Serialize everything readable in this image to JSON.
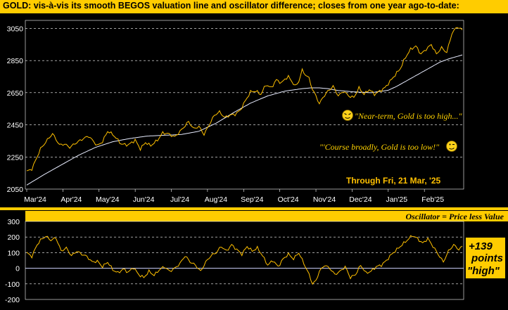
{
  "chart_data": [
    {
      "type": "line",
      "title": "GOLD:  vis-à-vis its smooth BEGOS valuation line and oscillator difference; closes from one year ago-to-date:",
      "ylim": [
        2050,
        3100
      ],
      "yticks": [
        2050,
        2250,
        2450,
        2650,
        2850,
        3050
      ],
      "x_tick_labels": [
        "Mar'24",
        "Apr'24",
        "May'24",
        "Jun'24",
        "Jul'24",
        "Aug'24",
        "Sep'24",
        "Oct'24",
        "Nov'24",
        "Dec'24",
        "Jan'25",
        "Feb'25"
      ],
      "x_tick_positions": [
        0,
        21,
        42,
        63,
        84,
        105,
        126,
        147,
        168,
        189,
        210,
        231
      ],
      "n_points": 254,
      "grid": "horizontal dashed",
      "series": [
        {
          "name": "Gold price",
          "color": "#ffc000",
          "anchors": [
            [
              0,
              2160
            ],
            [
              3,
              2175
            ],
            [
              8,
              2300
            ],
            [
              13,
              2370
            ],
            [
              15,
              2395
            ],
            [
              17,
              2360
            ],
            [
              19,
              2325
            ],
            [
              22,
              2330
            ],
            [
              25,
              2310
            ],
            [
              29,
              2340
            ],
            [
              33,
              2365
            ],
            [
              36,
              2380
            ],
            [
              41,
              2320
            ],
            [
              44,
              2345
            ],
            [
              47,
              2410
            ],
            [
              50,
              2390
            ],
            [
              55,
              2330
            ],
            [
              59,
              2325
            ],
            [
              63,
              2355
            ],
            [
              66,
              2300
            ],
            [
              69,
              2340
            ],
            [
              72,
              2320
            ],
            [
              76,
              2355
            ],
            [
              79,
              2400
            ],
            [
              82,
              2395
            ],
            [
              86,
              2375
            ],
            [
              90,
              2420
            ],
            [
              94,
              2470
            ],
            [
              97,
              2425
            ],
            [
              100,
              2440
            ],
            [
              103,
              2390
            ],
            [
              106,
              2450
            ],
            [
              109,
              2510
            ],
            [
              112,
              2530
            ],
            [
              115,
              2495
            ],
            [
              118,
              2510
            ],
            [
              121,
              2515
            ],
            [
              124,
              2540
            ],
            [
              127,
              2600
            ],
            [
              130,
              2655
            ],
            [
              133,
              2660
            ],
            [
              136,
              2640
            ],
            [
              139,
              2700
            ],
            [
              142,
              2680
            ],
            [
              145,
              2730
            ],
            [
              148,
              2710
            ],
            [
              150,
              2735
            ],
            [
              152,
              2750
            ],
            [
              154,
              2720
            ],
            [
              156,
              2690
            ],
            [
              158,
              2720
            ],
            [
              160,
              2790
            ],
            [
              162,
              2760
            ],
            [
              164,
              2740
            ],
            [
              166,
              2670
            ],
            [
              168,
              2630
            ],
            [
              170,
              2580
            ],
            [
              172,
              2620
            ],
            [
              175,
              2660
            ],
            [
              178,
              2690
            ],
            [
              181,
              2630
            ],
            [
              184,
              2660
            ],
            [
              187,
              2630
            ],
            [
              190,
              2620
            ],
            [
              193,
              2680
            ],
            [
              196,
              2640
            ],
            [
              199,
              2670
            ],
            [
              202,
              2640
            ],
            [
              205,
              2660
            ],
            [
              208,
              2680
            ],
            [
              211,
              2720
            ],
            [
              214,
              2760
            ],
            [
              217,
              2800
            ],
            [
              220,
              2870
            ],
            [
              223,
              2920
            ],
            [
              226,
              2940
            ],
            [
              229,
              2890
            ],
            [
              232,
              2920
            ],
            [
              235,
              2950
            ],
            [
              238,
              2890
            ],
            [
              241,
              2930
            ],
            [
              244,
              2900
            ],
            [
              247,
              3020
            ],
            [
              250,
              3060
            ],
            [
              253,
              3040
            ]
          ]
        },
        {
          "name": "BEGOS valuation line",
          "color": "#ffffff",
          "anchors": [
            [
              0,
              2075
            ],
            [
              10,
              2140
            ],
            [
              20,
              2200
            ],
            [
              30,
              2260
            ],
            [
              40,
              2310
            ],
            [
              50,
              2345
            ],
            [
              60,
              2365
            ],
            [
              70,
              2380
            ],
            [
              80,
              2385
            ],
            [
              90,
              2390
            ],
            [
              100,
              2410
            ],
            [
              110,
              2460
            ],
            [
              120,
              2525
            ],
            [
              130,
              2585
            ],
            [
              140,
              2630
            ],
            [
              150,
              2660
            ],
            [
              160,
              2675
            ],
            [
              165,
              2680
            ],
            [
              170,
              2680
            ],
            [
              175,
              2675
            ],
            [
              180,
              2665
            ],
            [
              190,
              2655
            ],
            [
              200,
              2650
            ],
            [
              210,
              2665
            ],
            [
              215,
              2690
            ],
            [
              220,
              2720
            ],
            [
              225,
              2750
            ],
            [
              230,
              2780
            ],
            [
              235,
              2810
            ],
            [
              240,
              2840
            ],
            [
              245,
              2860
            ],
            [
              253,
              2885
            ]
          ]
        }
      ],
      "annotations": [
        {
          "text": "+139",
          "color": "#000000"
        },
        {
          "text": "points",
          "color": "#000000"
        },
        {
          "text": "\"high\"",
          "color": "#000000"
        },
        {
          "text": "\"Near-term, Gold is too high...\"",
          "color": "#ffd200"
        },
        {
          "text": "\"'Course broadly, Gold is too low!\"",
          "color": "#ffd200"
        },
        {
          "text": "Through Fri, 21 Mar, '25",
          "color": "#ffc000"
        }
      ]
    },
    {
      "type": "line",
      "title": "Oscillator = Price less Value",
      "ylim": [
        -200,
        300
      ],
      "yticks": [
        -200,
        -100,
        0,
        100,
        200,
        300
      ],
      "zero_line": true,
      "series": [
        {
          "name": "Oscillator",
          "color": "#ffc000",
          "anchors": [
            [
              0,
              100
            ],
            [
              3,
              75
            ],
            [
              6,
              150
            ],
            [
              8,
              180
            ],
            [
              11,
              205
            ],
            [
              14,
              180
            ],
            [
              17,
              195
            ],
            [
              20,
              110
            ],
            [
              23,
              130
            ],
            [
              26,
              80
            ],
            [
              29,
              110
            ],
            [
              32,
              90
            ],
            [
              35,
              75
            ],
            [
              38,
              40
            ],
            [
              41,
              45
            ],
            [
              44,
              10
            ],
            [
              47,
              40
            ],
            [
              50,
              -10
            ],
            [
              53,
              -30
            ],
            [
              56,
              -5
            ],
            [
              59,
              -25
            ],
            [
              62,
              5
            ],
            [
              65,
              -40
            ],
            [
              68,
              -60
            ],
            [
              71,
              -20
            ],
            [
              74,
              -45
            ],
            [
              77,
              -10
            ],
            [
              80,
              10
            ],
            [
              83,
              -20
            ],
            [
              86,
              0
            ],
            [
              89,
              30
            ],
            [
              92,
              80
            ],
            [
              95,
              40
            ],
            [
              98,
              20
            ],
            [
              101,
              -20
            ],
            [
              104,
              40
            ],
            [
              107,
              80
            ],
            [
              110,
              100
            ],
            [
              113,
              140
            ],
            [
              116,
              110
            ],
            [
              119,
              150
            ],
            [
              122,
              120
            ],
            [
              125,
              90
            ],
            [
              128,
              140
            ],
            [
              131,
              110
            ],
            [
              134,
              130
            ],
            [
              137,
              80
            ],
            [
              140,
              20
            ],
            [
              143,
              50
            ],
            [
              146,
              10
            ],
            [
              149,
              60
            ],
            [
              152,
              90
            ],
            [
              155,
              60
            ],
            [
              158,
              100
            ],
            [
              161,
              30
            ],
            [
              164,
              -40
            ],
            [
              166,
              -100
            ],
            [
              168,
              -80
            ],
            [
              170,
              -20
            ],
            [
              173,
              20
            ],
            [
              176,
              0
            ],
            [
              179,
              -40
            ],
            [
              182,
              -20
            ],
            [
              185,
              10
            ],
            [
              188,
              -60
            ],
            [
              191,
              -40
            ],
            [
              194,
              20
            ],
            [
              197,
              -30
            ],
            [
              200,
              -20
            ],
            [
              203,
              10
            ],
            [
              206,
              20
            ],
            [
              209,
              50
            ],
            [
              212,
              90
            ],
            [
              215,
              120
            ],
            [
              218,
              150
            ],
            [
              221,
              180
            ],
            [
              224,
              210
            ],
            [
              227,
              190
            ],
            [
              230,
              160
            ],
            [
              233,
              190
            ],
            [
              236,
              140
            ],
            [
              239,
              90
            ],
            [
              242,
              40
            ],
            [
              245,
              110
            ],
            [
              248,
              150
            ],
            [
              251,
              120
            ],
            [
              253,
              140
            ]
          ]
        }
      ],
      "annotations": [
        {
          "text": "+139",
          "color": "#000000"
        },
        {
          "text": "points",
          "color": "#000000"
        },
        {
          "text": "\"high\"",
          "color": "#000000"
        }
      ]
    }
  ]
}
